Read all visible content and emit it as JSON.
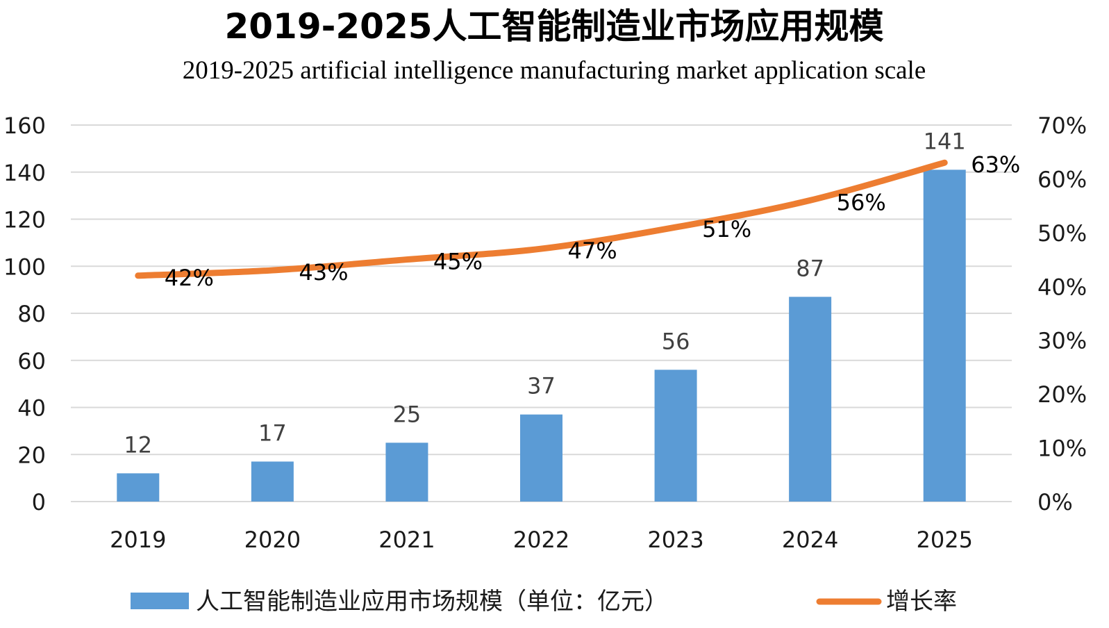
{
  "chart_data": {
    "type": "bar+line",
    "title": "2019-2025人工智能制造业市场应用规模",
    "subtitle": "2019-2025 artificial intelligence manufacturing market application scale",
    "categories": [
      "2019",
      "2020",
      "2021",
      "2022",
      "2023",
      "2024",
      "2025"
    ],
    "series": [
      {
        "name": "人工智能制造业应用市场规模（单位：亿元）",
        "type": "bar",
        "axis": "left",
        "values": [
          12,
          17,
          25,
          37,
          56,
          87,
          141
        ],
        "labels": [
          "12",
          "17",
          "25",
          "37",
          "56",
          "87",
          "141"
        ],
        "color": "#5b9bd5"
      },
      {
        "name": "增长率",
        "type": "line",
        "axis": "right",
        "values": [
          42,
          43,
          45,
          47,
          51,
          56,
          63
        ],
        "labels": [
          "42%",
          "43%",
          "45%",
          "47%",
          "51%",
          "56%",
          "63%"
        ],
        "color": "#ed7d31"
      }
    ],
    "y_left": {
      "min": 0,
      "max": 160,
      "ticks": [
        0,
        20,
        40,
        60,
        80,
        100,
        120,
        140,
        160
      ],
      "tick_labels": [
        "0",
        "20",
        "40",
        "60",
        "80",
        "100",
        "120",
        "140",
        "160"
      ]
    },
    "y_right": {
      "min": 0,
      "max": 70,
      "ticks": [
        0,
        10,
        20,
        30,
        40,
        50,
        60,
        70
      ],
      "tick_labels": [
        "0%",
        "10%",
        "20%",
        "30%",
        "40%",
        "50%",
        "60%",
        "70%"
      ]
    },
    "grid": true,
    "legend_position": "bottom"
  }
}
